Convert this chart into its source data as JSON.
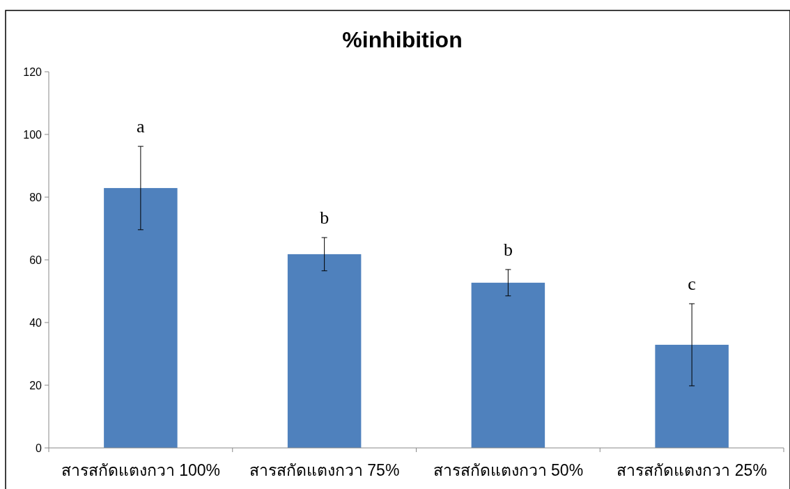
{
  "chart_data": {
    "type": "bar",
    "title": "%inhibition",
    "categories": [
      "สารสกัดแตงกวา 100%",
      "สารสกัดแตงกวา 75%",
      "สารสกัดแตงกวา 50%",
      "สารสกัดแตงกวา 25%"
    ],
    "values": [
      82.9,
      61.8,
      52.7,
      32.9
    ],
    "errors": [
      13.3,
      5.3,
      4.2,
      13.1
    ],
    "color": "#4f81bd",
    "ylim": [
      0,
      120
    ],
    "yticks": [
      0,
      20,
      40,
      60,
      80,
      100,
      120
    ],
    "grid": false,
    "annotations": [
      "a",
      "b",
      "b",
      "c"
    ]
  }
}
